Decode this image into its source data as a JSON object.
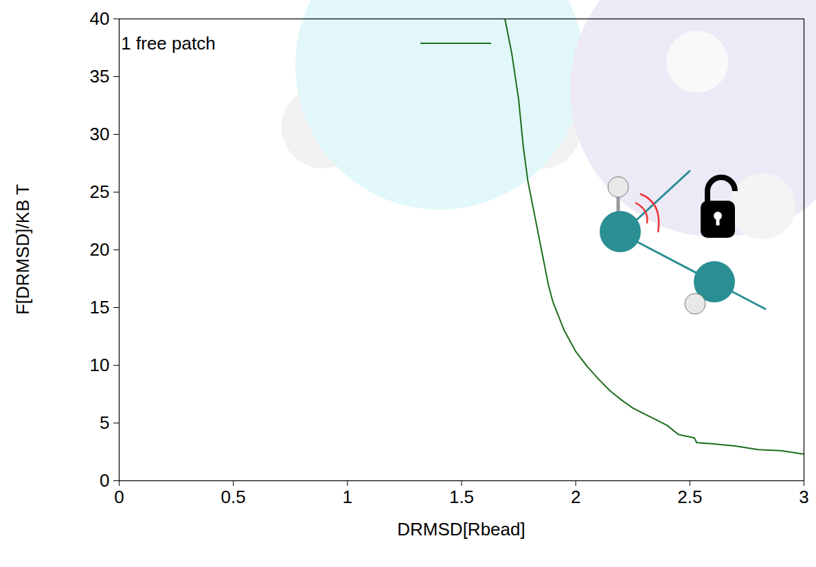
{
  "chart_data": {
    "type": "line",
    "x_label": "DRMSD[Rbead]",
    "y_label": "F[DRMSD]/KB T",
    "xlim": [
      0,
      3
    ],
    "ylim": [
      0,
      40
    ],
    "xticks": [
      0,
      0.5,
      1,
      1.5,
      2,
      2.5,
      3
    ],
    "yticks": [
      0,
      5,
      10,
      15,
      20,
      25,
      30,
      35,
      40
    ],
    "legend": "upper left",
    "x": [
      1.69,
      1.72,
      1.75,
      1.77,
      1.79,
      1.82,
      1.85,
      1.88,
      1.9,
      1.95,
      2.0,
      2.05,
      2.1,
      2.15,
      2.2,
      2.25,
      2.3,
      2.35,
      2.4,
      2.45,
      2.5,
      2.52,
      2.53,
      2.6,
      2.7,
      2.8,
      2.9,
      3.0
    ],
    "series": [
      {
        "name": "1 free patch",
        "color": "#1a6e1a",
        "values": [
          40,
          37,
          33,
          29,
          26,
          23,
          20,
          17,
          15.5,
          13,
          11.2,
          9.9,
          8.8,
          7.8,
          7.0,
          6.3,
          5.8,
          5.3,
          4.8,
          4.0,
          3.8,
          3.7,
          3.3,
          3.2,
          3.0,
          2.7,
          2.6,
          2.3
        ]
      }
    ]
  }
}
